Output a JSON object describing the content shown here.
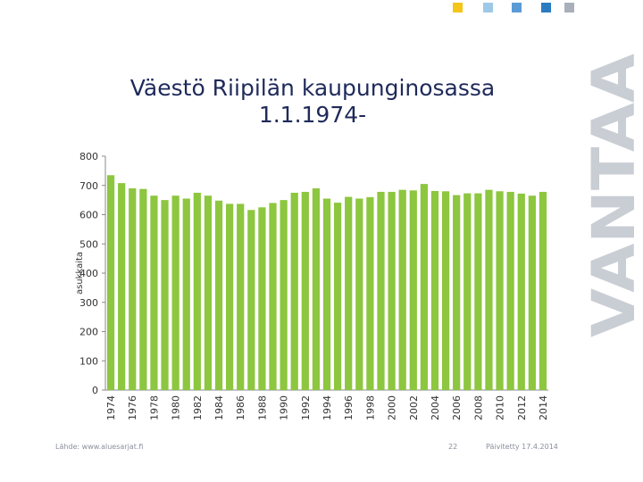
{
  "slide": {
    "title_line1": "Väestö Riipilän kaupunginosassa",
    "title_line2": "1.1.1974-",
    "brand": "VANTAA",
    "source": "Lähde: www.aluesarjat.fi",
    "page_number": "22",
    "updated": "Päivitetty 17.4.2014",
    "square_colors": [
      "#f5c518",
      "#9ec8e8",
      "#5b9bd5",
      "#2b7bc0",
      "#a9b0bb"
    ]
  },
  "chart_data": {
    "type": "bar",
    "title": "",
    "xlabel": "",
    "ylabel": "asukkaita",
    "ylim": [
      0,
      800
    ],
    "yticks": [
      0,
      100,
      200,
      300,
      400,
      500,
      600,
      700,
      800
    ],
    "grid": false,
    "bar_color": "#8dc63f",
    "categories": [
      "1974",
      "1975",
      "1976",
      "1977",
      "1978",
      "1979",
      "1980",
      "1981",
      "1982",
      "1983",
      "1984",
      "1985",
      "1986",
      "1987",
      "1988",
      "1989",
      "1990",
      "1991",
      "1992",
      "1993",
      "1994",
      "1995",
      "1996",
      "1997",
      "1998",
      "1999",
      "2000",
      "2001",
      "2002",
      "2003",
      "2004",
      "2005",
      "2006",
      "2007",
      "2008",
      "2009",
      "2010",
      "2011",
      "2012",
      "2013",
      "2014"
    ],
    "x_tick_labels": [
      "1974",
      "1976",
      "1978",
      "1980",
      "1982",
      "1984",
      "1986",
      "1988",
      "1990",
      "1992",
      "1994",
      "1996",
      "1998",
      "2000",
      "2002",
      "2004",
      "2006",
      "2008",
      "2010",
      "2012",
      "2014"
    ],
    "values": [
      735,
      708,
      690,
      688,
      665,
      650,
      665,
      655,
      675,
      665,
      648,
      637,
      637,
      616,
      625,
      640,
      650,
      675,
      678,
      690,
      655,
      641,
      661,
      655,
      660,
      678,
      678,
      685,
      683,
      705,
      681,
      680,
      667,
      673,
      673,
      685,
      680,
      678,
      672,
      665,
      678
    ]
  }
}
